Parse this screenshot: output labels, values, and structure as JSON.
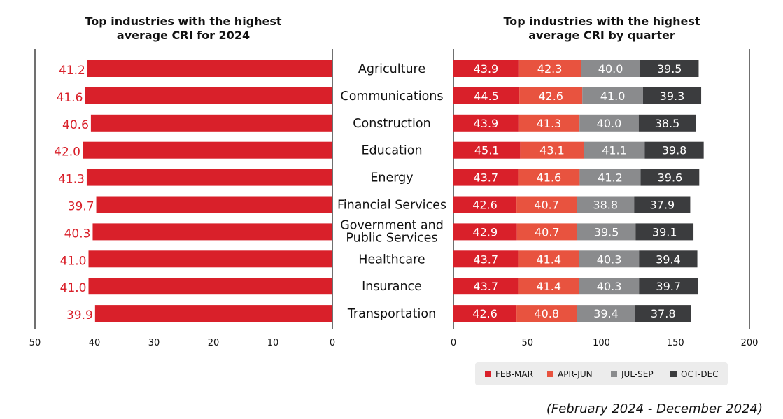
{
  "chart_data": {
    "left": {
      "type": "bar",
      "orientation": "horizontal-reversed",
      "title_lines": [
        "Top industries with the highest",
        "average CRI for 2024"
      ],
      "xlim": [
        50,
        0
      ],
      "ticks": [
        "50",
        "40",
        "30",
        "20",
        "10",
        "0"
      ],
      "tick_values": [
        50,
        40,
        30,
        20,
        10,
        0
      ],
      "values": [
        41.2,
        41.6,
        40.6,
        42.0,
        41.3,
        39.7,
        40.3,
        41.0,
        41.0,
        39.9
      ],
      "labels": [
        "41.2",
        "41.6",
        "40.6",
        "42.0",
        "41.3",
        "39.7",
        "40.3",
        "41.0",
        "41.0",
        "39.9"
      ],
      "color": "#d9202a"
    },
    "right": {
      "type": "bar",
      "orientation": "horizontal-stacked",
      "title_lines": [
        "Top industries with the highest",
        "average CRI by quarter"
      ],
      "xlim": [
        0,
        200
      ],
      "ticks": [
        "0",
        "50",
        "100",
        "150",
        "200"
      ],
      "tick_values": [
        0,
        50,
        100,
        150,
        200
      ],
      "series": [
        {
          "name": "FEB-MAR",
          "color": "#d9202a",
          "values": [
            43.9,
            44.5,
            43.9,
            45.1,
            43.7,
            42.6,
            42.9,
            43.7,
            43.7,
            42.6
          ],
          "labels": [
            "43.9",
            "44.5",
            "43.9",
            "45.1",
            "43.7",
            "42.6",
            "42.9",
            "43.7",
            "43.7",
            "42.6"
          ]
        },
        {
          "name": "APR-JUN",
          "color": "#e8533f",
          "values": [
            42.3,
            42.6,
            41.3,
            43.1,
            41.6,
            40.7,
            40.7,
            41.4,
            41.4,
            40.8
          ],
          "labels": [
            "42.3",
            "42.6",
            "41.3",
            "43.1",
            "41.6",
            "40.7",
            "40.7",
            "41.4",
            "41.4",
            "40.8"
          ]
        },
        {
          "name": "JUL-SEP",
          "color": "#8a8b8d",
          "values": [
            40.0,
            41.0,
            40.0,
            41.1,
            41.2,
            38.8,
            39.5,
            40.3,
            40.3,
            39.4
          ],
          "labels": [
            "40.0",
            "41.0",
            "40.0",
            "41.1",
            "41.2",
            "38.8",
            "39.5",
            "40.3",
            "40.3",
            "39.4"
          ]
        },
        {
          "name": "OCT-DEC",
          "color": "#3b3c3e",
          "values": [
            39.5,
            39.3,
            38.5,
            39.8,
            39.6,
            37.9,
            39.1,
            39.4,
            39.7,
            37.8
          ],
          "labels": [
            "39.5",
            "39.3",
            "38.5",
            "39.8",
            "39.6",
            "37.9",
            "39.1",
            "39.4",
            "39.7",
            "37.8"
          ]
        }
      ],
      "legend_position": "bottom-center"
    },
    "categories": [
      [
        "Agriculture"
      ],
      [
        "Communications"
      ],
      [
        "Construction"
      ],
      [
        "Education"
      ],
      [
        "Energy"
      ],
      [
        "Financial Services"
      ],
      [
        "Government and",
        "Public Services"
      ],
      [
        "Healthcare"
      ],
      [
        "Insurance"
      ],
      [
        "Transportation"
      ]
    ]
  },
  "footnote": "(February 2024 - December 2024)"
}
